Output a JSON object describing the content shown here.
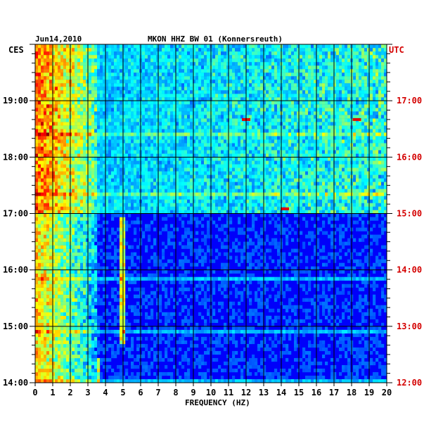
{
  "chart_data": {
    "type": "heatmap",
    "date_label": "Jun14,2010",
    "title": "MKON HHZ BW 01 (Konnersreuth)",
    "left_timezone": "CES",
    "right_timezone": "UTC",
    "xlabel": "FREQUENCY (HZ)",
    "x_ticks": [
      "0",
      "1",
      "2",
      "3",
      "4",
      "5",
      "6",
      "7",
      "8",
      "9",
      "10",
      "11",
      "12",
      "13",
      "14",
      "15",
      "16",
      "17",
      "18",
      "19",
      "20"
    ],
    "xlim": [
      0,
      20
    ],
    "left_time_ticks": [
      "19:00",
      "18:00",
      "17:00",
      "16:00",
      "15:00",
      "14:00"
    ],
    "right_time_ticks": [
      "17:00",
      "16:00",
      "15:00",
      "14:00",
      "13:00",
      "12:00"
    ],
    "time_range_ces": [
      "14:00",
      "20:00"
    ],
    "grid": true,
    "colormap": "jet",
    "features": [
      {
        "description": "strong low-frequency energy",
        "freq_range_hz": [
          0,
          3.5
        ],
        "time_range_ces": [
          "14:00",
          "20:00"
        ]
      },
      {
        "description": "broadband noise",
        "freq_range_hz": [
          0,
          20
        ],
        "time_range_ces": [
          "17:00",
          "20:00"
        ]
      },
      {
        "description": "narrow spectral line",
        "freq_hz": 5,
        "time_range_ces": [
          "14:40",
          "16:55"
        ]
      },
      {
        "description": "narrow spectral line",
        "freq_hz": 3.6,
        "time_range_ces": [
          "14:00",
          "14:25"
        ]
      },
      {
        "description": "transient",
        "freq_hz": 14.2,
        "time_ces": "17:05"
      },
      {
        "description": "transient",
        "freq_hz": 12,
        "time_ces": "18:40"
      },
      {
        "description": "transient",
        "freq_hz": 18.3,
        "time_ces": "18:40"
      }
    ]
  }
}
